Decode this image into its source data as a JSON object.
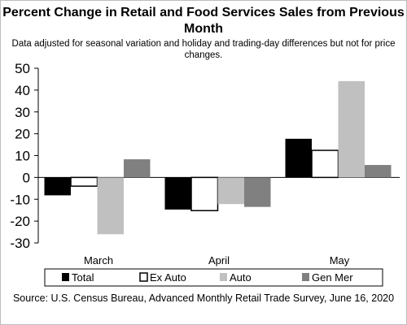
{
  "chart_data": {
    "type": "bar",
    "title": "Percent Change in Retail and Food Services Sales from Previous Month",
    "subtitle": "Data adjusted for seasonal variation and holiday and trading-day differences but not for price changes.",
    "categories": [
      "March",
      "April",
      "May"
    ],
    "series": [
      {
        "name": "Total",
        "color": "#000000",
        "values": [
          -8.2,
          -14.7,
          17.7
        ]
      },
      {
        "name": "Ex Auto",
        "color": "#ffffff",
        "values": [
          -4.0,
          -15.2,
          12.4
        ]
      },
      {
        "name": "Auto",
        "color": "#c0c0c0",
        "values": [
          -26.0,
          -12.2,
          44.1
        ]
      },
      {
        "name": "Gen Mer",
        "color": "#808080",
        "values": [
          8.3,
          -13.5,
          5.7
        ]
      }
    ],
    "ylim": [
      -30,
      50
    ],
    "yticks": [
      "50",
      "40",
      "30",
      "20",
      "10",
      "0",
      "-10",
      "-20",
      "-30"
    ],
    "ytick_values": [
      50,
      40,
      30,
      20,
      10,
      0,
      -10,
      -20,
      -30
    ],
    "xlabel": "",
    "ylabel": "",
    "grid": false,
    "legend": "bottom"
  },
  "source": "Source: U.S. Census Bureau, Advanced Monthly Retail Trade Survey, June 16, 2020"
}
